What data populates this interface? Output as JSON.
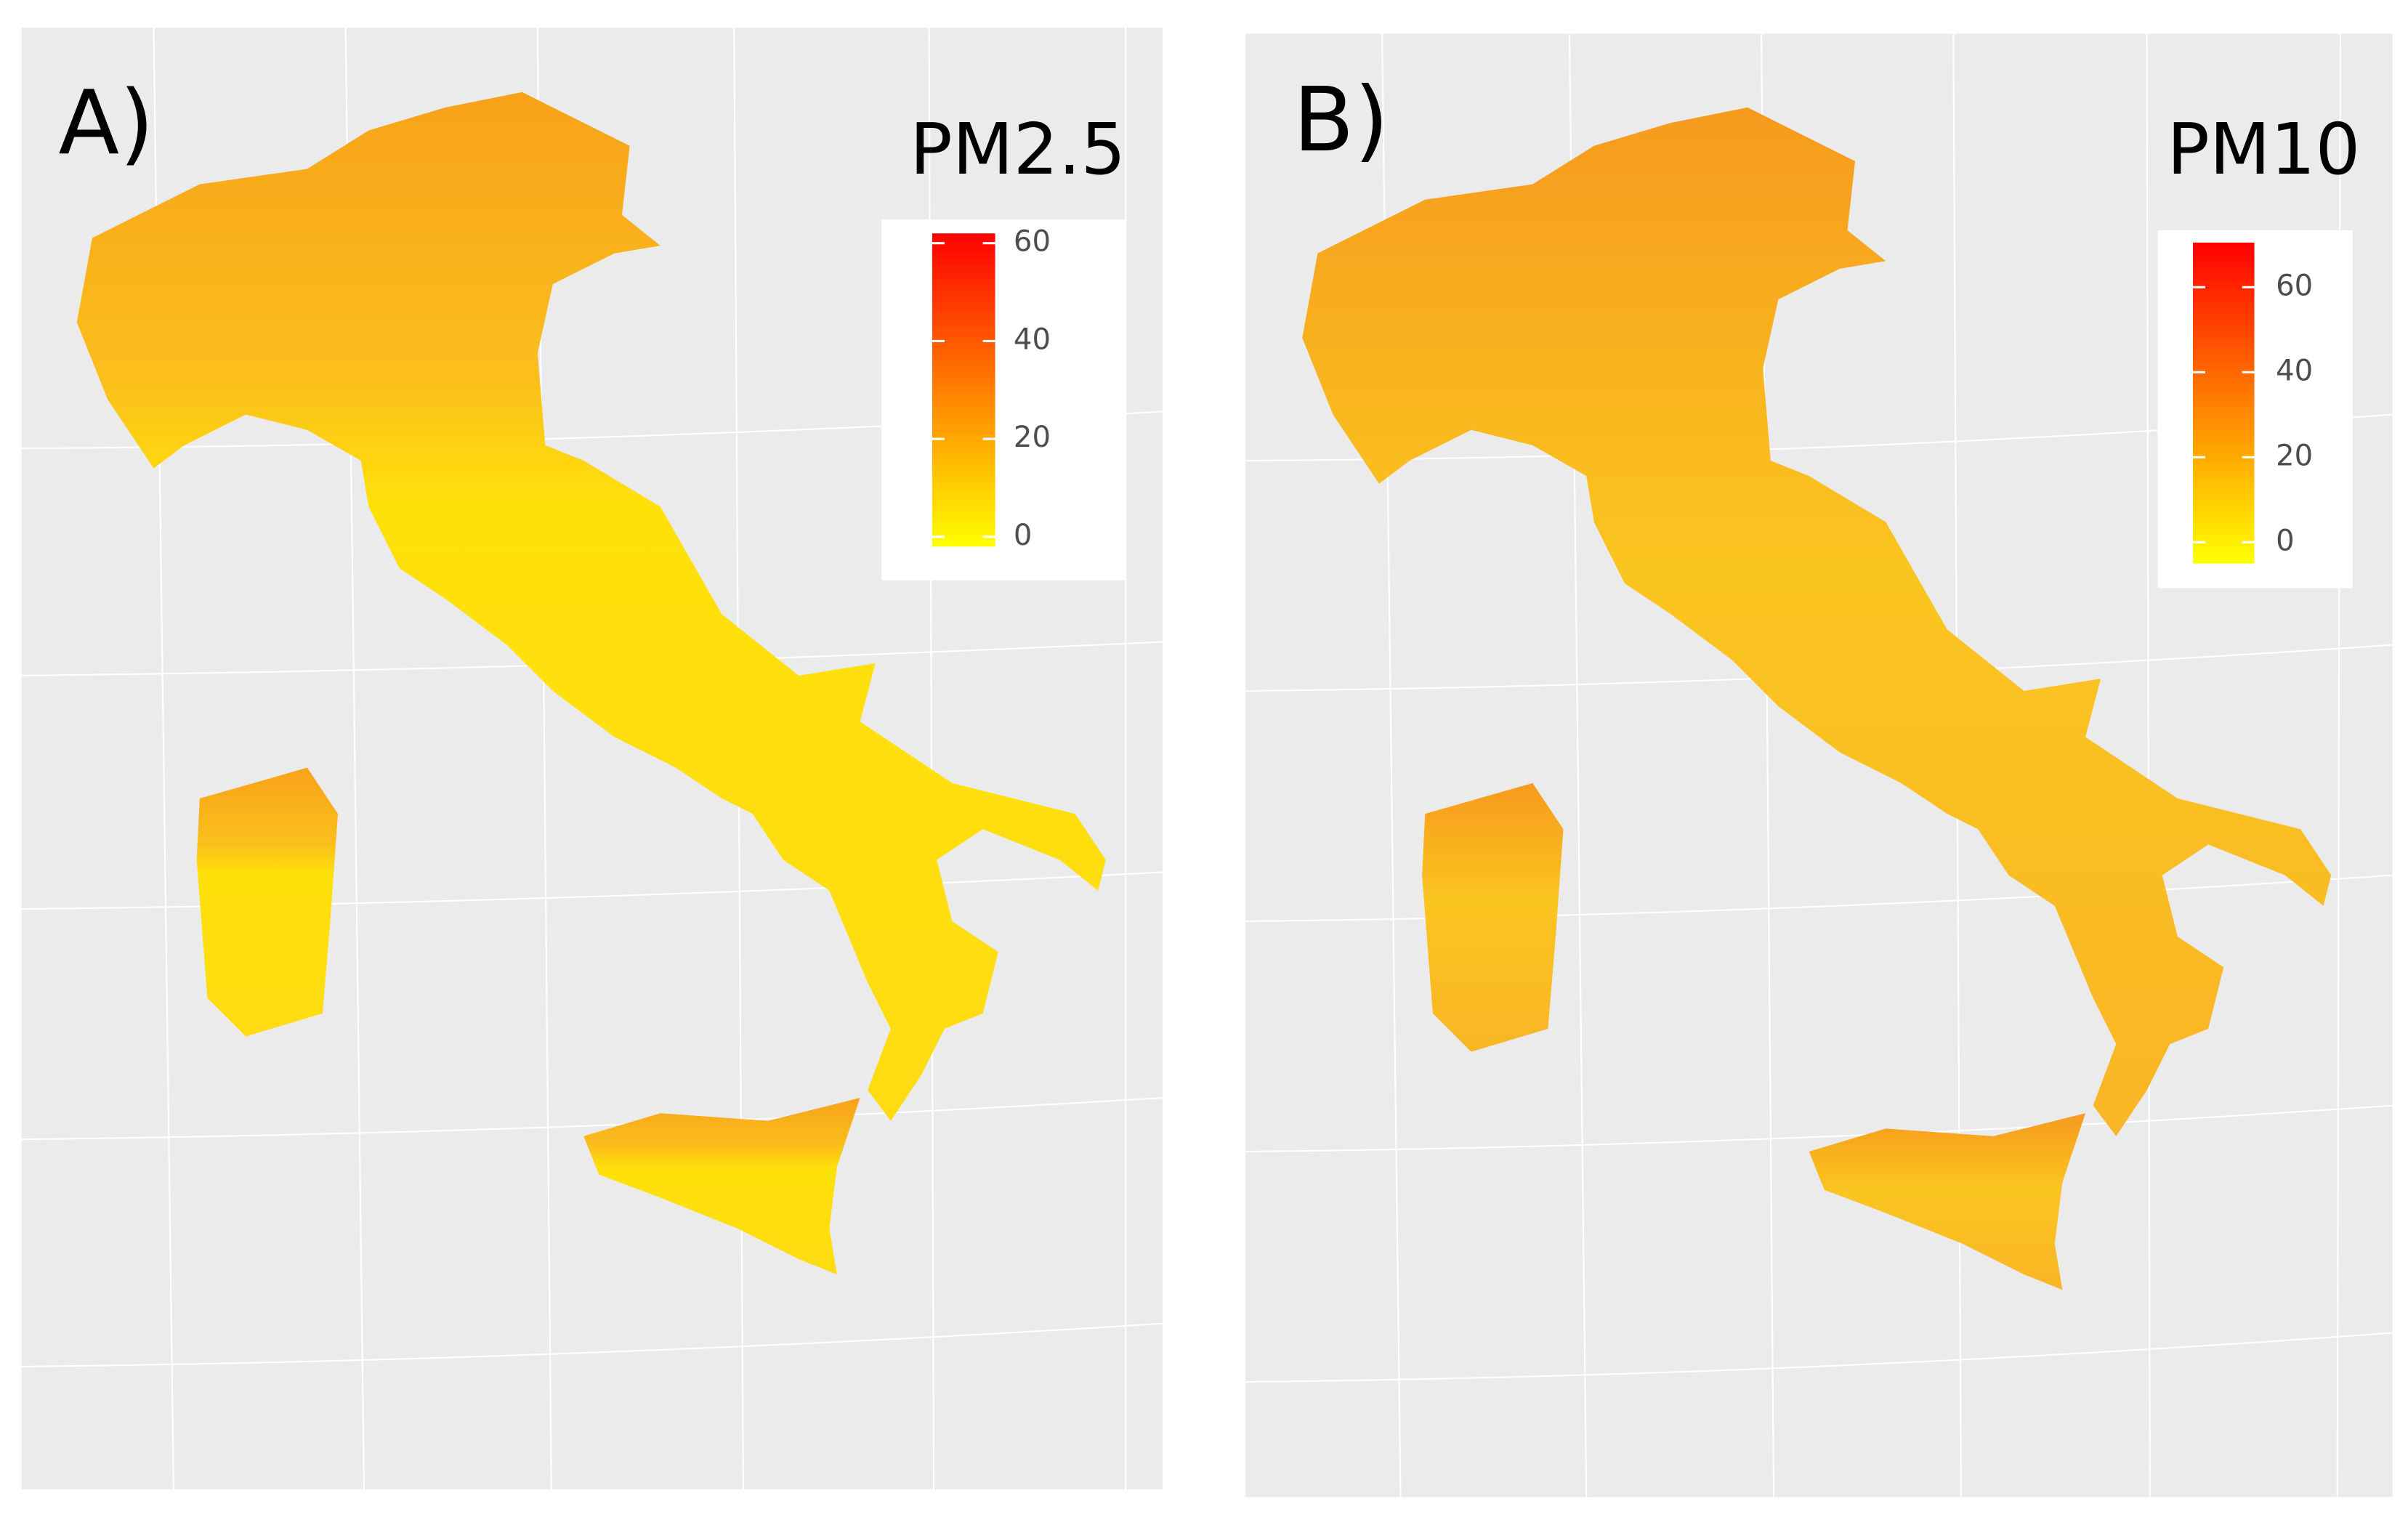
{
  "panels": [
    {
      "label": "A)",
      "legend": {
        "title": "PM2.5",
        "range": [
          -2,
          62
        ],
        "ticks": [
          0,
          20,
          40,
          60
        ],
        "colors": [
          "#ffff00",
          "#ff0000"
        ]
      }
    },
    {
      "label": "B)",
      "legend": {
        "title": "PM10",
        "range": [
          -5,
          70.5
        ],
        "ticks": [
          0,
          20,
          40,
          60
        ],
        "colors": [
          "#ffff00",
          "#ff0000"
        ]
      }
    }
  ]
}
